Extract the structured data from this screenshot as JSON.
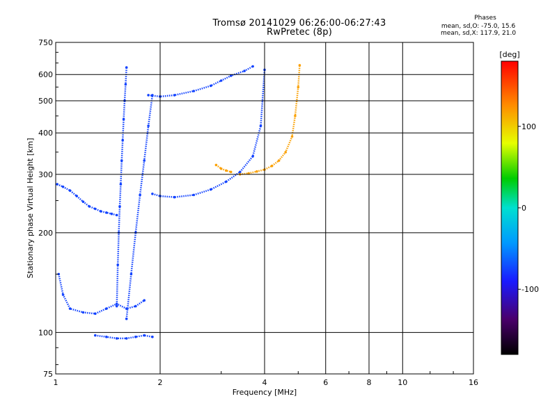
{
  "header": {
    "title_line1": "Tromsø 20141029 06:26:00-06:27:43",
    "title_line2": "RwPretec (8p)"
  },
  "stats": {
    "label": "Phases",
    "line_o": "mean, sd,O: -75.0, 15.6",
    "line_x": "mean, sd,X: 117.9, 21.0"
  },
  "colorbar": {
    "unit_label": "[deg]",
    "ticks": [
      100,
      0,
      -100
    ],
    "range": [
      -180,
      180
    ]
  },
  "chart_data": {
    "type": "scatter",
    "title": "Tromsø 20141029 06:26:00-06:27:43",
    "subtitle": "RwPretec (8p)",
    "xlabel": "Frequency [MHz]",
    "ylabel": "Stationary phase Virtual Height [km]",
    "x_scale": "log",
    "y_scale": "log",
    "xlim": [
      1,
      16
    ],
    "ylim": [
      75,
      750
    ],
    "x_ticks": [
      1,
      2,
      4,
      6,
      8,
      10,
      16
    ],
    "y_ticks": [
      75,
      100,
      200,
      300,
      400,
      500,
      600,
      750
    ],
    "grid": true,
    "series": [
      {
        "name": "O-mode",
        "phase_deg": -75,
        "traces": [
          {
            "x": [
              1.01,
              1.05,
              1.1,
              1.15,
              1.2,
              1.25,
              1.3,
              1.35,
              1.4,
              1.45,
              1.5
            ],
            "y": [
              280,
              275,
              268,
              258,
              248,
              240,
              236,
              232,
              230,
              228,
              226
            ]
          },
          {
            "x": [
              1.5,
              1.51,
              1.52,
              1.53,
              1.54,
              1.55,
              1.56,
              1.57,
              1.58,
              1.59,
              1.6
            ],
            "y": [
              120,
              160,
              200,
              240,
              280,
              330,
              380,
              440,
              500,
              560,
              630
            ]
          },
          {
            "x": [
              1.6,
              1.65,
              1.7,
              1.75,
              1.8,
              1.85,
              1.9
            ],
            "y": [
              110,
              150,
              200,
              260,
              330,
              420,
              520
            ]
          },
          {
            "x": [
              1.9,
              2.0,
              2.2,
              2.5,
              2.8,
              3.1,
              3.4,
              3.7,
              3.9,
              4.0
            ],
            "y": [
              262,
              258,
              256,
              260,
              270,
              285,
              305,
              340,
              420,
              620
            ]
          },
          {
            "x": [
              1.85,
              2.0,
              2.2,
              2.5,
              2.8,
              3.0,
              3.2,
              3.5,
              3.7
            ],
            "y": [
              520,
              515,
              520,
              535,
              555,
              575,
              595,
              615,
              635
            ]
          },
          {
            "x": [
              1.02,
              1.05,
              1.1,
              1.2,
              1.3,
              1.4,
              1.5,
              1.6,
              1.7,
              1.8
            ],
            "y": [
              150,
              130,
              118,
              115,
              114,
              118,
              122,
              118,
              120,
              125
            ]
          },
          {
            "x": [
              1.3,
              1.4,
              1.5,
              1.6,
              1.7,
              1.8,
              1.9
            ],
            "y": [
              98,
              97,
              96,
              96,
              97,
              98,
              97
            ]
          }
        ]
      },
      {
        "name": "X-mode",
        "phase_deg": 118,
        "traces": [
          {
            "x": [
              2.9,
              3.0,
              3.1,
              3.2
            ],
            "y": [
              320,
              312,
              308,
              305
            ]
          },
          {
            "x": [
              3.4,
              3.6,
              3.8,
              4.0,
              4.2,
              4.4,
              4.6,
              4.8,
              4.9,
              5.0,
              5.05
            ],
            "y": [
              300,
              302,
              306,
              310,
              318,
              330,
              350,
              390,
              450,
              550,
              640
            ]
          }
        ]
      }
    ]
  }
}
